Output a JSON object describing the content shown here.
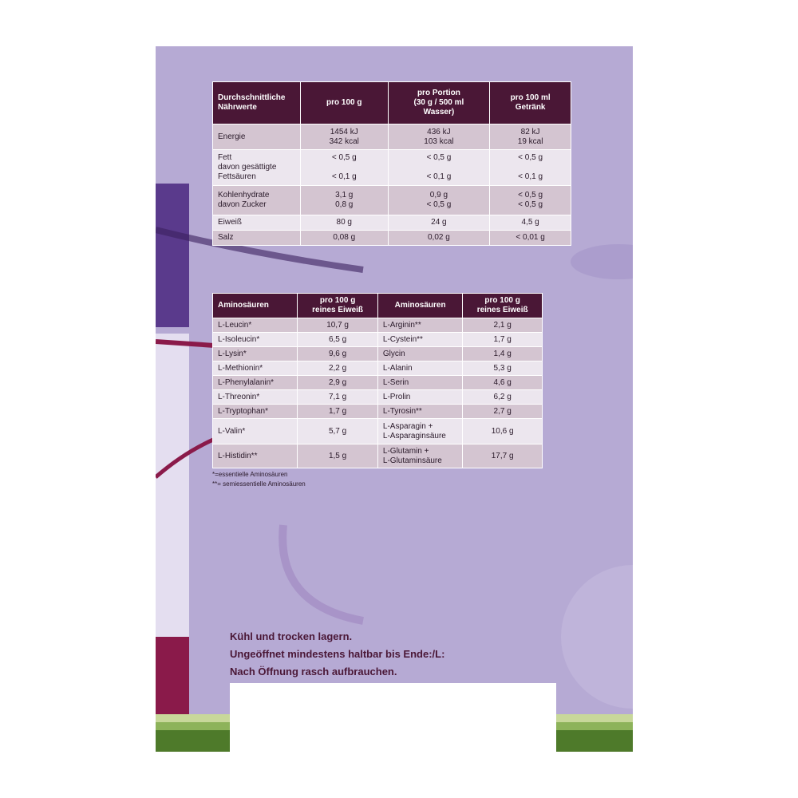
{
  "nutrition": {
    "header": [
      "Durchschnittliche\nNährwerte",
      "pro 100 g",
      "pro  Portion\n(30 g / 500 ml\nWasser)",
      "pro 100 ml\nGetränk"
    ],
    "rows": [
      [
        "Energie",
        "1454 kJ\n342 kcal",
        "436 kJ\n103 kcal",
        "82 kJ\n19 kcal"
      ],
      [
        "Fett\ndavon gesättigte\nFettsäuren",
        "< 0,5 g\n\n< 0,1 g",
        "< 0,5 g\n\n< 0,1 g",
        "< 0,5 g\n\n< 0,1 g"
      ],
      [
        "Kohlenhydrate\ndavon Zucker",
        "3,1 g\n0,8 g",
        "0,9 g\n< 0,5 g",
        "< 0,5 g\n< 0,5 g"
      ],
      [
        "Eiweiß",
        "80 g",
        "24 g",
        "4,5 g"
      ],
      [
        "Salz",
        "0,08 g",
        "0,02 g",
        "< 0,01 g"
      ]
    ]
  },
  "amino": {
    "header": [
      "Aminosäuren",
      "pro 100 g\nreines Eiweiß",
      "Aminosäuren",
      "pro 100 g\nreines Eiweiß"
    ],
    "rows": [
      [
        "L-Leucin*",
        "10,7 g",
        "L-Arginin**",
        "2,1 g"
      ],
      [
        "L-Isoleucin*",
        "6,5 g",
        "L-Cystein**",
        "1,7 g"
      ],
      [
        "L-Lysin*",
        "9,6 g",
        "Glycin",
        "1,4 g"
      ],
      [
        "L-Methionin*",
        "2,2 g",
        "L-Alanin",
        "5,3 g"
      ],
      [
        "L-Phenylalanin*",
        "2,9 g",
        "L-Serin",
        "4,6 g"
      ],
      [
        "L-Threonin*",
        "7,1 g",
        "L-Prolin",
        "6,2 g"
      ],
      [
        "L-Tryptophan*",
        "1,7 g",
        "L-Tyrosin**",
        "2,7 g"
      ],
      [
        "L-Valin*",
        "5,7 g",
        "L-Asparagin +\nL-Asparaginsäure",
        "10,6 g"
      ],
      [
        "L-Histidin**",
        "1,5 g",
        "L-Glutamin +\nL-Glutaminsäure",
        "17,7 g"
      ]
    ]
  },
  "footnotes": [
    "*=essentielle Aminosäuren",
    "**= semiessentielle Aminosäuren"
  ],
  "storage": [
    "Kühl und trocken lagern.",
    "Ungeöffnet mindestens haltbar bis Ende:/L:",
    "Nach Öffnung rasch aufbrauchen."
  ]
}
